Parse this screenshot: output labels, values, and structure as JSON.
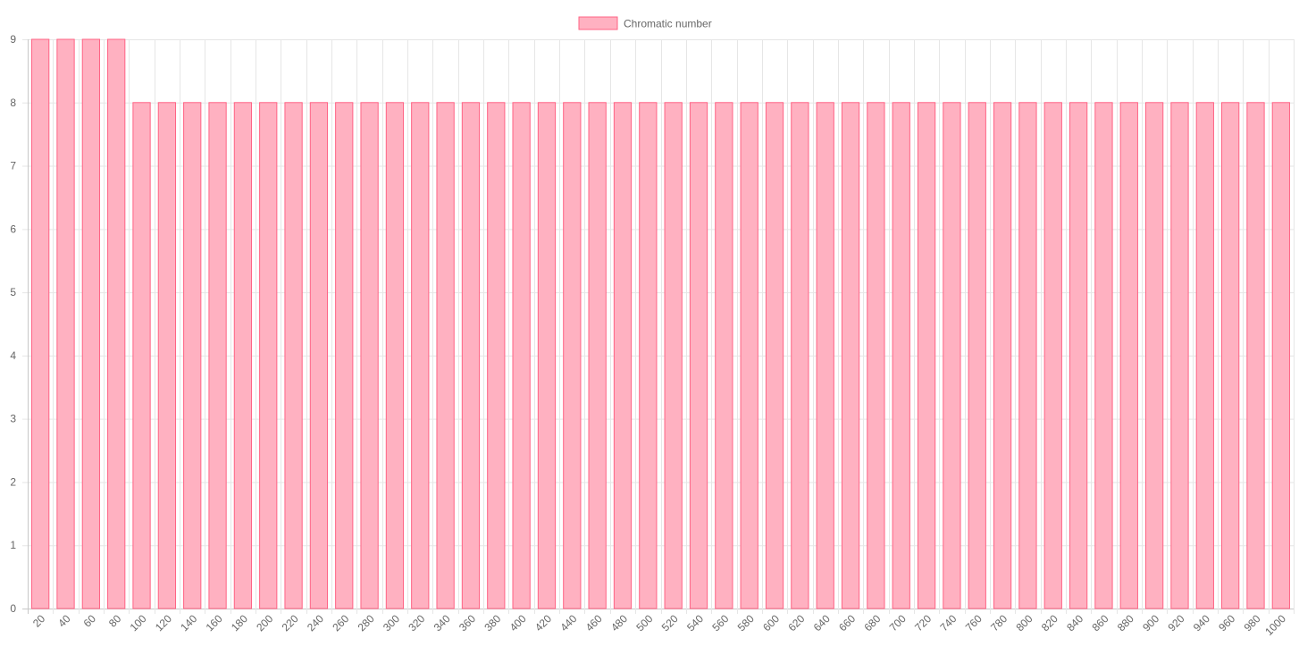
{
  "chart_data": {
    "type": "bar",
    "title": "",
    "xlabel": "",
    "ylabel": "",
    "categories": [
      "20",
      "40",
      "60",
      "80",
      "100",
      "120",
      "140",
      "160",
      "180",
      "200",
      "220",
      "240",
      "260",
      "280",
      "300",
      "320",
      "340",
      "360",
      "380",
      "400",
      "420",
      "440",
      "460",
      "480",
      "500",
      "520",
      "540",
      "560",
      "580",
      "600",
      "620",
      "640",
      "660",
      "680",
      "700",
      "720",
      "740",
      "760",
      "780",
      "800",
      "820",
      "840",
      "860",
      "880",
      "900",
      "920",
      "940",
      "960",
      "980",
      "1000"
    ],
    "series": [
      {
        "name": "Chromatic number",
        "values": [
          9,
          9,
          9,
          9,
          8,
          8,
          8,
          8,
          8,
          8,
          8,
          8,
          8,
          8,
          8,
          8,
          8,
          8,
          8,
          8,
          8,
          8,
          8,
          8,
          8,
          8,
          8,
          8,
          8,
          8,
          8,
          8,
          8,
          8,
          8,
          8,
          8,
          8,
          8,
          8,
          8,
          8,
          8,
          8,
          8,
          8,
          8,
          8,
          8,
          8
        ],
        "fill": "#ffb1c1",
        "border": "#ff6384"
      }
    ],
    "ylim": [
      0,
      9
    ],
    "yticks": [
      0,
      1,
      2,
      3,
      4,
      5,
      6,
      7,
      8,
      9
    ],
    "grid": true,
    "legend_position": "top-center"
  }
}
